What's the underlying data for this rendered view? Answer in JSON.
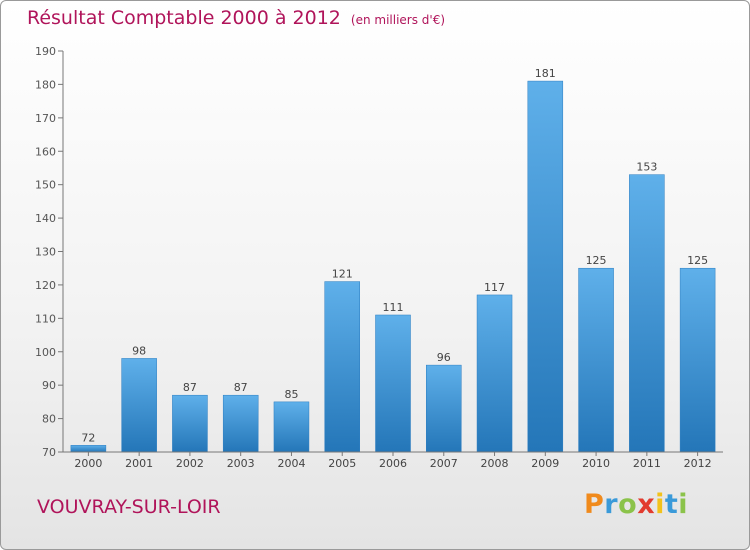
{
  "header": {
    "title": "Résultat Comptable 2000 à 2012",
    "unit": "(en milliers d'€)"
  },
  "footer": {
    "commune": "VOUVRAY-SUR-LOIR",
    "logo": "Proxiti"
  },
  "colors": {
    "title": "#b0145a",
    "bar_light": "#5fb0ea",
    "bar_dark": "#2476b8"
  },
  "chart_data": {
    "type": "bar",
    "title": "Résultat Comptable 2000 à 2012",
    "subtitle": "(en milliers d'€)",
    "categories": [
      "2000",
      "2001",
      "2002",
      "2003",
      "2004",
      "2005",
      "2006",
      "2007",
      "2008",
      "2009",
      "2010",
      "2011",
      "2012"
    ],
    "values": [
      72,
      98,
      87,
      87,
      85,
      121,
      111,
      96,
      117,
      181,
      125,
      153,
      125
    ],
    "data_labels": [
      "72",
      "98",
      "87",
      "87",
      "85",
      "121",
      "111",
      "96",
      "117",
      "181",
      "125",
      "153",
      "125"
    ],
    "ylim": [
      70,
      190
    ],
    "yticks": [
      70,
      80,
      90,
      100,
      110,
      120,
      130,
      140,
      150,
      160,
      170,
      180,
      190
    ],
    "grid": false
  }
}
